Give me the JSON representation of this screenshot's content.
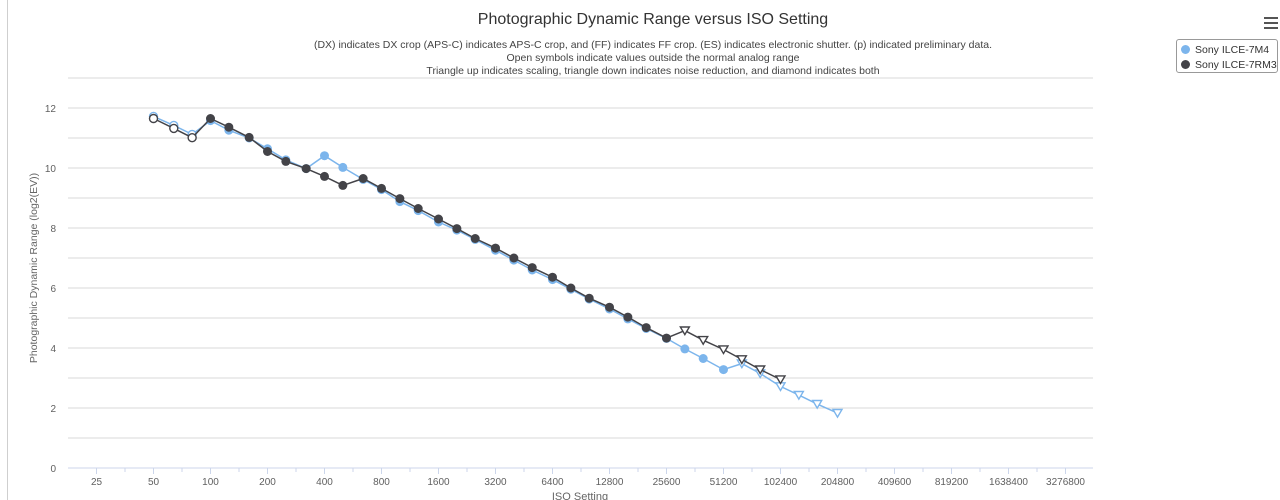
{
  "chart_data": {
    "type": "line",
    "title": "Photographic Dynamic Range versus ISO Setting",
    "subtitle": [
      "(DX) indicates DX crop (APS-C) indicates APS-C crop, and (FF) indicates FF crop. (ES) indicates electronic shutter. (p) indicated preliminary data.",
      "Open symbols indicate values outside the normal analog range",
      "Triangle up indicates scaling, triangle down indicates noise reduction, and diamond indicates both"
    ],
    "xlabel": "ISO Setting",
    "ylabel": "Photographic Dynamic Range (log2(EV))",
    "x_scale": "log2",
    "x_ticks": [
      25,
      50,
      100,
      200,
      400,
      800,
      1600,
      3200,
      6400,
      12800,
      25600,
      51200,
      102400,
      204800,
      409600,
      819200,
      1638400,
      3276800
    ],
    "xlim": [
      25,
      3276800
    ],
    "y_ticks": [
      0,
      2,
      4,
      6,
      8,
      10,
      12
    ],
    "ylim": [
      0,
      12
    ],
    "grid": true,
    "legend_position": "top-right",
    "series": [
      {
        "name": "Sony ILCE-7M4",
        "color": "#7cb5ec",
        "points": [
          {
            "x": 50,
            "y": 11.72,
            "m": "o"
          },
          {
            "x": 64,
            "y": 11.42,
            "m": "o"
          },
          {
            "x": 80,
            "y": 11.12,
            "m": "o"
          },
          {
            "x": 100,
            "y": 11.58,
            "m": "c"
          },
          {
            "x": 125,
            "y": 11.26,
            "m": "c"
          },
          {
            "x": 160,
            "y": 11.0,
            "m": "c"
          },
          {
            "x": 200,
            "y": 10.64,
            "m": "c"
          },
          {
            "x": 250,
            "y": 10.27,
            "m": "c"
          },
          {
            "x": 320,
            "y": 9.98,
            "m": "c"
          },
          {
            "x": 400,
            "y": 10.41,
            "m": "c"
          },
          {
            "x": 500,
            "y": 10.02,
            "m": "c"
          },
          {
            "x": 640,
            "y": 9.62,
            "m": "c"
          },
          {
            "x": 800,
            "y": 9.28,
            "m": "c"
          },
          {
            "x": 1000,
            "y": 8.88,
            "m": "c"
          },
          {
            "x": 1250,
            "y": 8.58,
            "m": "c"
          },
          {
            "x": 1600,
            "y": 8.2,
            "m": "c"
          },
          {
            "x": 2000,
            "y": 7.93,
            "m": "c"
          },
          {
            "x": 2500,
            "y": 7.62,
            "m": "c"
          },
          {
            "x": 3200,
            "y": 7.26,
            "m": "c"
          },
          {
            "x": 4000,
            "y": 6.93,
            "m": "c"
          },
          {
            "x": 5000,
            "y": 6.6,
            "m": "c"
          },
          {
            "x": 6400,
            "y": 6.28,
            "m": "c"
          },
          {
            "x": 8000,
            "y": 5.96,
            "m": "c"
          },
          {
            "x": 10000,
            "y": 5.63,
            "m": "c"
          },
          {
            "x": 12800,
            "y": 5.3,
            "m": "c"
          },
          {
            "x": 16000,
            "y": 4.97,
            "m": "c"
          },
          {
            "x": 20000,
            "y": 4.65,
            "m": "c"
          },
          {
            "x": 25600,
            "y": 4.32,
            "m": "c"
          },
          {
            "x": 32000,
            "y": 3.97,
            "m": "c"
          },
          {
            "x": 40000,
            "y": 3.65,
            "m": "c"
          },
          {
            "x": 51200,
            "y": 3.28,
            "m": "c"
          },
          {
            "x": 64000,
            "y": 3.48,
            "m": "v"
          },
          {
            "x": 80000,
            "y": 3.15,
            "m": "v"
          },
          {
            "x": 102400,
            "y": 2.72,
            "m": "v"
          },
          {
            "x": 128000,
            "y": 2.43,
            "m": "v"
          },
          {
            "x": 160000,
            "y": 2.13,
            "m": "v"
          },
          {
            "x": 204800,
            "y": 1.83,
            "m": "v"
          }
        ]
      },
      {
        "name": "Sony ILCE-7RM3",
        "color": "#434348",
        "points": [
          {
            "x": 50,
            "y": 11.65,
            "m": "o"
          },
          {
            "x": 64,
            "y": 11.32,
            "m": "o"
          },
          {
            "x": 80,
            "y": 11.01,
            "m": "o"
          },
          {
            "x": 100,
            "y": 11.65,
            "m": "c"
          },
          {
            "x": 125,
            "y": 11.36,
            "m": "c"
          },
          {
            "x": 160,
            "y": 11.02,
            "m": "c"
          },
          {
            "x": 200,
            "y": 10.55,
            "m": "c"
          },
          {
            "x": 250,
            "y": 10.22,
            "m": "c"
          },
          {
            "x": 320,
            "y": 9.98,
            "m": "c"
          },
          {
            "x": 400,
            "y": 9.72,
            "m": "c"
          },
          {
            "x": 500,
            "y": 9.42,
            "m": "c"
          },
          {
            "x": 640,
            "y": 9.65,
            "m": "c"
          },
          {
            "x": 800,
            "y": 9.32,
            "m": "c"
          },
          {
            "x": 1000,
            "y": 8.98,
            "m": "c"
          },
          {
            "x": 1250,
            "y": 8.65,
            "m": "c"
          },
          {
            "x": 1600,
            "y": 8.3,
            "m": "c"
          },
          {
            "x": 2000,
            "y": 7.98,
            "m": "c"
          },
          {
            "x": 2500,
            "y": 7.65,
            "m": "c"
          },
          {
            "x": 3200,
            "y": 7.33,
            "m": "c"
          },
          {
            "x": 4000,
            "y": 7.0,
            "m": "c"
          },
          {
            "x": 5000,
            "y": 6.68,
            "m": "c"
          },
          {
            "x": 6400,
            "y": 6.36,
            "m": "c"
          },
          {
            "x": 8000,
            "y": 6.0,
            "m": "c"
          },
          {
            "x": 10000,
            "y": 5.66,
            "m": "c"
          },
          {
            "x": 12800,
            "y": 5.36,
            "m": "c"
          },
          {
            "x": 16000,
            "y": 5.03,
            "m": "c"
          },
          {
            "x": 20000,
            "y": 4.68,
            "m": "c"
          },
          {
            "x": 25600,
            "y": 4.33,
            "m": "c"
          },
          {
            "x": 32000,
            "y": 4.58,
            "m": "v"
          },
          {
            "x": 40000,
            "y": 4.26,
            "m": "v"
          },
          {
            "x": 51200,
            "y": 3.95,
            "m": "v"
          },
          {
            "x": 64000,
            "y": 3.62,
            "m": "v"
          },
          {
            "x": 80000,
            "y": 3.28,
            "m": "v"
          },
          {
            "x": 102400,
            "y": 2.95,
            "m": "v"
          }
        ]
      }
    ]
  }
}
